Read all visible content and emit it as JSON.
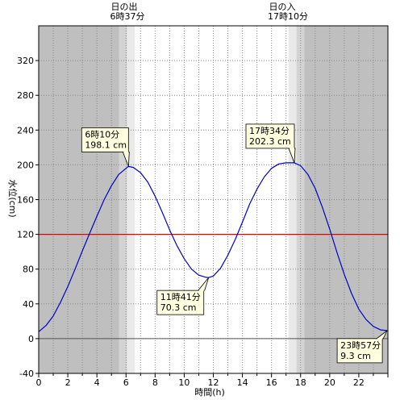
{
  "chart_data": {
    "type": "line",
    "xlabel": "時間(h)",
    "ylabel": "水位(cm)",
    "xlim": [
      0,
      24
    ],
    "ylim": [
      -40,
      360
    ],
    "x_ticks": [
      0,
      2,
      4,
      6,
      8,
      10,
      12,
      14,
      16,
      18,
      20,
      22
    ],
    "y_ticks": [
      -40,
      0,
      40,
      80,
      120,
      160,
      200,
      240,
      280,
      320
    ],
    "grid": true,
    "reference_line": {
      "value": 120,
      "color": "#e00000"
    },
    "sunrise": {
      "label": "日の出",
      "time": "6時37分",
      "hour": 6.617
    },
    "sunset": {
      "label": "日の入",
      "time": "17時10分",
      "hour": 17.167
    },
    "series": [
      {
        "color": "#0000cc",
        "x": [
          0,
          0.5,
          1,
          1.5,
          2,
          2.5,
          3,
          3.5,
          4,
          4.5,
          5,
          5.5,
          6,
          6.17,
          6.5,
          7,
          7.5,
          8,
          8.5,
          9,
          9.5,
          10,
          10.5,
          11,
          11.5,
          11.68,
          12,
          12.5,
          13,
          13.5,
          14,
          14.5,
          15,
          15.5,
          16,
          16.5,
          17,
          17.57,
          18,
          18.5,
          19,
          19.5,
          20,
          20.5,
          21,
          21.5,
          22,
          22.5,
          23,
          23.5,
          23.95
        ],
        "y": [
          8,
          15,
          26,
          42,
          60,
          80,
          101,
          121,
          141,
          160,
          176,
          189,
          196,
          198.1,
          197,
          191,
          180,
          164,
          145,
          125,
          107,
          92,
          80,
          73,
          70.5,
          70.3,
          72,
          81,
          96,
          114,
          134,
          155,
          172,
          186,
          196,
          201,
          202.3,
          202.3,
          199,
          189,
          173,
          151,
          126,
          99,
          74,
          52,
          34,
          22,
          14,
          10,
          9.3
        ]
      }
    ],
    "annotations": [
      {
        "time": "6時10分",
        "value": "198.1 cm",
        "x": 6.17,
        "y": 198.1
      },
      {
        "time": "11時41分",
        "value": "70.3 cm",
        "x": 11.68,
        "y": 70.3
      },
      {
        "time": "17時34分",
        "value": "202.3 cm",
        "x": 17.57,
        "y": 202.3
      },
      {
        "time": "23時57分",
        "value": "9.3 cm",
        "x": 23.95,
        "y": 9.3
      }
    ]
  }
}
